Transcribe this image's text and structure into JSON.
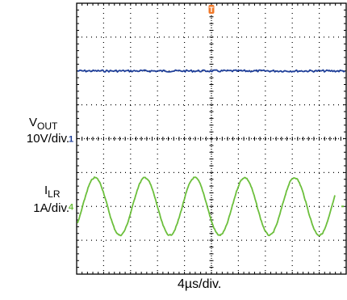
{
  "chart_data": {
    "type": "line",
    "title": "",
    "xlabel": "4µs/div.",
    "grid": true,
    "divisions": {
      "x": 10,
      "y": 8
    },
    "trigger_marker": "T",
    "series": [
      {
        "name": "VOUT",
        "scale": "10V/div.",
        "channel_marker": "1",
        "color": "#1f3f99",
        "waveform": "dc",
        "level_div": 2.0,
        "noise_div": 0.03
      },
      {
        "name": "ILR",
        "scale": "1A/div.",
        "channel_marker": "4",
        "color": "#6cbf3c",
        "waveform": "sine",
        "offset_div": -2.0,
        "amplitude_div": 0.85,
        "period_div": 1.85,
        "cycles_shown": 5
      }
    ]
  },
  "labels": {
    "vout_main": "V",
    "vout_sub": "OUT",
    "vout_scale": "10V/div.",
    "ilr_main": "I",
    "ilr_sub": "LR",
    "ilr_scale": "1A/div.",
    "timebase": "4µs/div."
  },
  "colors": {
    "trigger": "#f07828",
    "grid": "#000000"
  }
}
